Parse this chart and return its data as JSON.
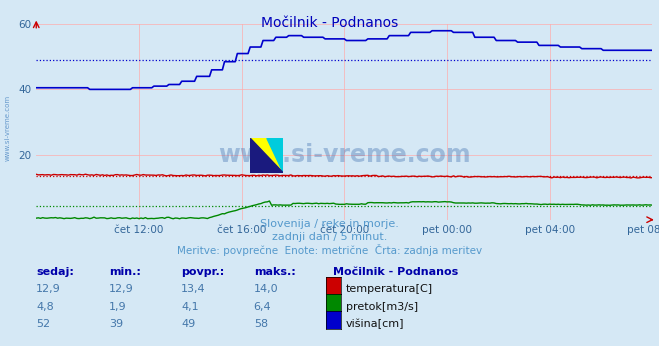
{
  "title": "Močilnik - Podnanos",
  "background_color": "#d5e8f5",
  "plot_bg_color": "#d5e8f5",
  "x_ticks_labels": [
    "čet 12:00",
    "čet 16:00",
    "čet 20:00",
    "pet 00:00",
    "pet 04:00",
    "pet 08:00"
  ],
  "x_ticks_pos": [
    48,
    96,
    144,
    192,
    240,
    288
  ],
  "y_lim": [
    0,
    60
  ],
  "y_ticks": [
    20,
    40,
    60
  ],
  "grid_color": "#ffaaaa",
  "temp_color": "#cc0000",
  "flow_color": "#008800",
  "height_color": "#0000cc",
  "temp_avg": 13.4,
  "flow_avg": 4.1,
  "height_avg": 49,
  "subtitle1": "Slovenija / reke in morje.",
  "subtitle2": "zadnji dan / 5 minut.",
  "subtitle3": "Meritve: povprečne  Enote: metrične  Črta: zadnja meritev",
  "subtitle_color": "#5599cc",
  "station_name": "Močilnik - Podnanos",
  "legend_items": [
    "temperatura[C]",
    "pretok[m3/s]",
    "višina[cm]"
  ],
  "legend_colors": [
    "#cc0000",
    "#008800",
    "#0000cc"
  ],
  "table_headers": [
    "sedaj:",
    "min.:",
    "povpr.:",
    "maks.:"
  ],
  "table_rows": [
    [
      "12,9",
      "12,9",
      "13,4",
      "14,0"
    ],
    [
      "4,8",
      "1,9",
      "4,1",
      "6,4"
    ],
    [
      "52",
      "39",
      "49",
      "58"
    ]
  ],
  "header_color": "#0000aa",
  "value_color": "#4477aa",
  "watermark": "www.si-vreme.com"
}
